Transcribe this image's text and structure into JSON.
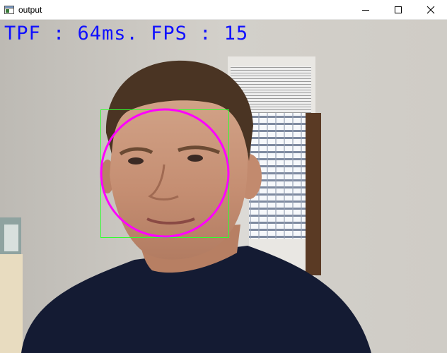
{
  "window": {
    "title": "output",
    "icons": {
      "app": "app-window-icon",
      "minimize": "minimize-icon",
      "maximize": "maximize-icon",
      "close": "close-icon"
    }
  },
  "overlay": {
    "fps_text": "TPF : 64ms. FPS : 15",
    "text_color": "#1010ff"
  },
  "detections": {
    "face_box_color": "#30ff30",
    "face_ellipse_color": "#ff00ff"
  }
}
